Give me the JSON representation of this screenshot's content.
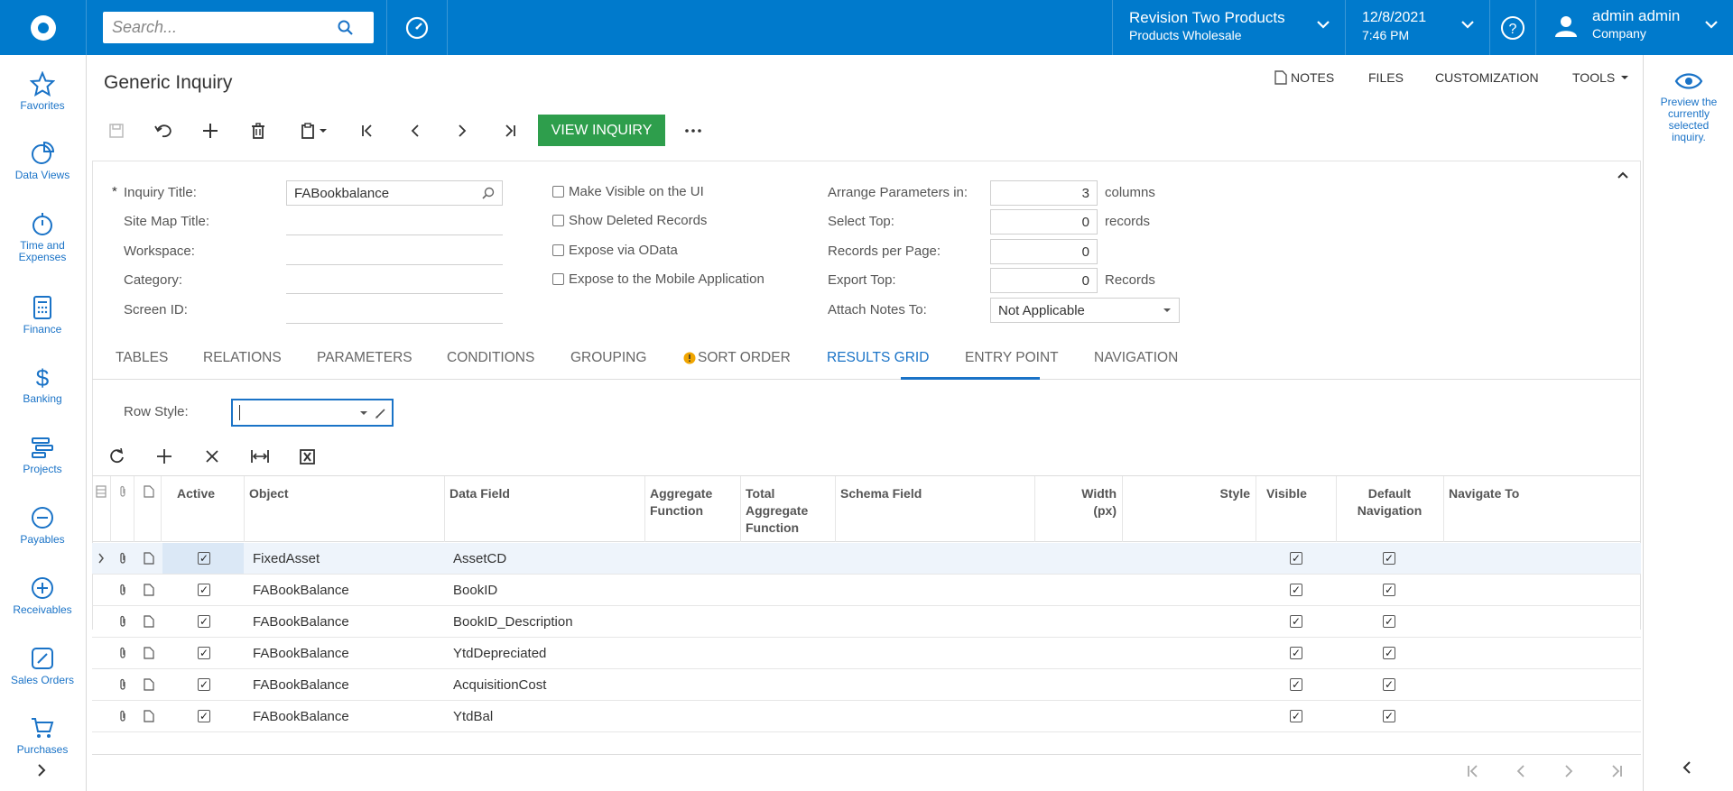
{
  "header": {
    "search_placeholder": "Search...",
    "tenant_name": "Revision Two Products",
    "tenant_branch": "Products Wholesale",
    "date": "12/8/2021",
    "time": "7:46 PM",
    "user_name": "admin admin",
    "user_company": "Company",
    "brand_color": "#007acc"
  },
  "leftnav": {
    "items": [
      {
        "label": "Favorites",
        "icon": "star-icon"
      },
      {
        "label": "Data Views",
        "icon": "pie-chart-icon"
      },
      {
        "label": "Time and Expenses",
        "icon": "stopwatch-icon"
      },
      {
        "label": "Finance",
        "icon": "calculator-icon"
      },
      {
        "label": "Banking",
        "icon": "dollar-icon"
      },
      {
        "label": "Projects",
        "icon": "projects-icon"
      },
      {
        "label": "Payables",
        "icon": "minus-circle-icon"
      },
      {
        "label": "Receivables",
        "icon": "plus-circle-icon"
      },
      {
        "label": "Sales Orders",
        "icon": "pencil-square-icon"
      },
      {
        "label": "Purchases",
        "icon": "cart-icon"
      }
    ]
  },
  "rightpanel": {
    "preview_label": "Preview the currently selected inquiry."
  },
  "page": {
    "title": "Generic Inquiry",
    "links": [
      "NOTES",
      "FILES",
      "CUSTOMIZATION",
      "TOOLS"
    ],
    "view_inquiry_label": "VIEW INQUIRY",
    "accent_color": "#2e9e4c"
  },
  "form": {
    "inquiry_title_label": "Inquiry Title:",
    "inquiry_title_value": "FABookbalance",
    "site_map_title_label": "Site Map Title:",
    "workspace_label": "Workspace:",
    "category_label": "Category:",
    "screen_id_label": "Screen ID:",
    "make_visible_label": "Make Visible on the UI",
    "show_deleted_label": "Show Deleted Records",
    "expose_odata_label": "Expose via OData",
    "expose_mobile_label": "Expose to the Mobile Application",
    "arrange_label": "Arrange Parameters in:",
    "arrange_value": "3",
    "arrange_unit": "columns",
    "select_top_label": "Select Top:",
    "select_top_value": "0",
    "select_top_unit": "records",
    "records_per_page_label": "Records per Page:",
    "records_per_page_value": "0",
    "export_top_label": "Export Top:",
    "export_top_value": "0",
    "export_top_unit": "Records",
    "attach_notes_label": "Attach Notes To:",
    "attach_notes_value": "Not Applicable",
    "required_mark": "*"
  },
  "tabs": [
    "TABLES",
    "RELATIONS",
    "PARAMETERS",
    "CONDITIONS",
    "GROUPING",
    "SORT ORDER",
    "RESULTS GRID",
    "ENTRY POINT",
    "NAVIGATION"
  ],
  "active_tab": "RESULTS GRID",
  "results": {
    "row_style_label": "Row Style:",
    "columns": {
      "active": "Active",
      "object": "Object",
      "data_field": "Data Field",
      "aggregate_function": "Aggregate Function",
      "total_aggregate_function": "Total Aggregate Function",
      "schema_field": "Schema Field",
      "width": "Width (px)",
      "style": "Style",
      "visible": "Visible",
      "default_navigation": "Default Navigation",
      "navigate_to": "Navigate To"
    },
    "rows": [
      {
        "active": true,
        "object": "FixedAsset",
        "data_field": "AssetCD",
        "visible": true,
        "default_navigation": true
      },
      {
        "active": true,
        "object": "FABookBalance",
        "data_field": "BookID",
        "visible": true,
        "default_navigation": true
      },
      {
        "active": true,
        "object": "FABookBalance",
        "data_field": "BookID_Description",
        "visible": true,
        "default_navigation": true
      },
      {
        "active": true,
        "object": "FABookBalance",
        "data_field": "YtdDepreciated",
        "visible": true,
        "default_navigation": true
      },
      {
        "active": true,
        "object": "FABookBalance",
        "data_field": "AcquisitionCost",
        "visible": true,
        "default_navigation": true
      },
      {
        "active": true,
        "object": "FABookBalance",
        "data_field": "YtdBal",
        "visible": true,
        "default_navigation": true
      }
    ]
  }
}
